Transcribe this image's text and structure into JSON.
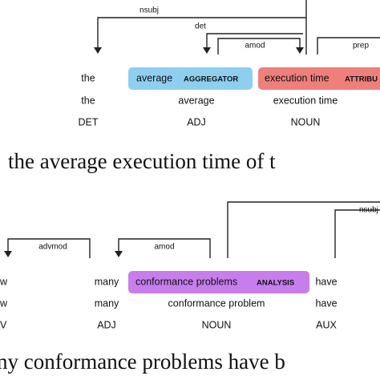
{
  "top": {
    "arcs": [
      "nsubj",
      "det",
      "amod",
      "prep"
    ],
    "tokens": [
      {
        "text": "the",
        "lemma": "the",
        "pos": "DET"
      },
      {
        "text": "average",
        "tag": "AGGREGATOR",
        "lemma": "average",
        "pos": "ADJ"
      },
      {
        "text": "execution time",
        "tag": "ATTRIBU",
        "lemma": "execution time",
        "pos": "NOUN"
      }
    ],
    "sentence": "the average execution time of t"
  },
  "bottom": {
    "arcs": [
      "nsubj",
      "advmod",
      "amod"
    ],
    "tokens": [
      {
        "text": "w",
        "lemma": "w",
        "pos": "V"
      },
      {
        "text": "many",
        "lemma": "many",
        "pos": "ADJ"
      },
      {
        "text": "conformance problems",
        "tag": "ANALYSIS",
        "lemma": "conformance problem",
        "pos": "NOUN"
      },
      {
        "text": "have",
        "lemma": "have",
        "pos": "AUX"
      }
    ],
    "sentence": "ny conformance problems have b"
  }
}
